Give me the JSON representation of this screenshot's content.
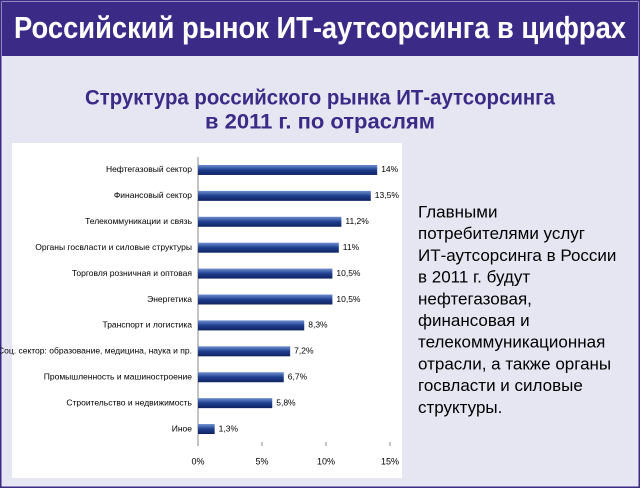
{
  "header": {
    "title": "Российский рынок ИТ-аутсорсинга в цифрах"
  },
  "chart_data": {
    "type": "bar",
    "orientation": "horizontal",
    "title": [
      "Структура российского рынка ИТ-аутсорсинга",
      "в 2011 г. по отраслям"
    ],
    "categories": [
      "Нефтегазовый сектор",
      "Финансовый сектор",
      "Телекоммуникации и связь",
      "Органы госвласти и силовые структуры",
      "Торговля розничная и оптовая",
      "Энергетика",
      "Транспорт и логистика",
      "Соц. сектор: образование, медицина, наука и пр.",
      "Промышленность и машиностроение",
      "Строительство и недвижимость",
      "Иное"
    ],
    "values": [
      14,
      13.5,
      11.2,
      11,
      10.5,
      10.5,
      8.3,
      7.2,
      6.7,
      5.8,
      1.3
    ],
    "value_labels": [
      "14%",
      "13,5%",
      "11,2%",
      "11%",
      "10,5%",
      "10,5%",
      "8,3%",
      "7,2%",
      "6,7%",
      "5,8%",
      "1,3%"
    ],
    "color": "#1f3f8f",
    "xlim": [
      0,
      15
    ],
    "xticks": [
      {
        "value": 0,
        "label": "0%"
      },
      {
        "value": 5,
        "label": "5%"
      },
      {
        "value": 10,
        "label": "10%"
      },
      {
        "value": 15,
        "label": "15%"
      }
    ]
  },
  "note": [
    "Главными",
    "потребителями услуг",
    "ИТ-аутсорсинга в России",
    "в 2011 г. будут",
    "нефтегазовая,",
    "финансовая и",
    "телекоммуникационная",
    "отрасли, а также органы",
    "госвласти и силовые",
    "структуры."
  ]
}
